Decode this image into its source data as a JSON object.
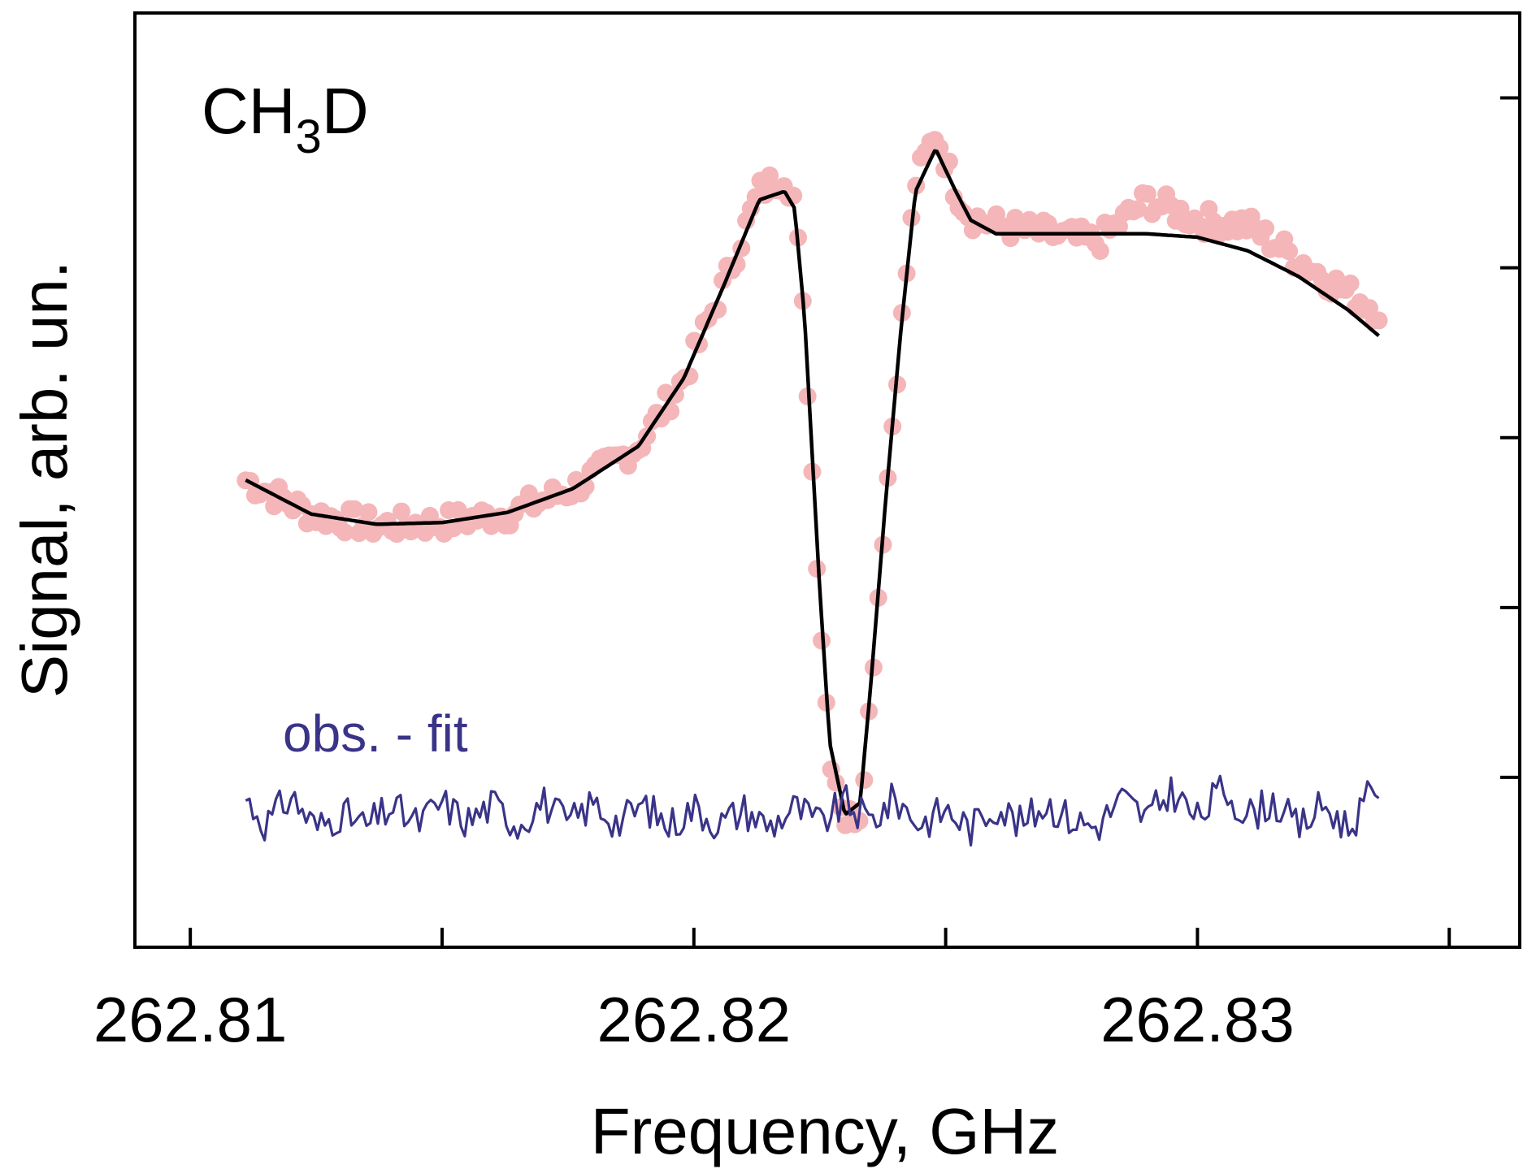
{
  "chart_data": {
    "type": "scatter",
    "title": "",
    "annotation_species": {
      "main": "CH",
      "sub": "3",
      "tail": "D"
    },
    "residual_label": "obs. - fit",
    "xlabel": "Frequency, GHz",
    "ylabel": "Signal, arb. un.",
    "xlim": [
      262.8089,
      262.8364
    ],
    "ylim": [
      -0.5,
      5.0
    ],
    "xticks": [
      262.81,
      262.815,
      262.82,
      262.825,
      262.83,
      262.835
    ],
    "xtick_labels": [
      "262.81",
      "",
      "262.82",
      "",
      "262.83",
      ""
    ],
    "yticks": [
      0.5,
      1.5,
      2.5,
      3.5,
      4.5
    ],
    "yticks_labeled": false,
    "grid": false,
    "colors": {
      "observed": "#f4b6b8",
      "fit": "#000000",
      "residual": "#3a3488"
    },
    "series": [
      {
        "name": "",
        "kind": "observed-points",
        "x": [
          262.8111,
          262.8124,
          262.8137,
          262.815,
          262.8163,
          262.8176,
          262.8189,
          262.8198,
          262.8206,
          262.8213,
          262.8218,
          262.822,
          262.8222,
          262.8225,
          262.8227,
          262.823,
          262.8233,
          262.8235,
          262.8238,
          262.8241,
          262.8244,
          262.8248,
          262.8252,
          262.8255,
          262.826,
          262.827,
          262.828,
          262.829,
          262.83,
          262.831,
          262.832,
          262.833,
          262.8336
        ],
        "y": [
          2.25,
          2.05,
          1.98,
          2.0,
          2.05,
          2.2,
          2.45,
          2.85,
          3.4,
          3.95,
          4.05,
          3.9,
          3.1,
          1.5,
          0.65,
          0.25,
          0.3,
          0.95,
          2.1,
          3.1,
          4.0,
          4.3,
          3.95,
          3.8,
          3.75,
          3.7,
          3.65,
          3.9,
          3.78,
          3.75,
          3.55,
          3.35,
          3.25
        ]
      },
      {
        "name": "",
        "kind": "fit-line",
        "x": [
          262.8111,
          262.8124,
          262.8137,
          262.815,
          262.8163,
          262.8176,
          262.8189,
          262.8198,
          262.8206,
          262.8213,
          262.8218,
          262.822,
          262.8222,
          262.8225,
          262.8227,
          262.823,
          262.8233,
          262.8235,
          262.8238,
          262.8241,
          262.8244,
          262.8248,
          262.8252,
          262.8255,
          262.826,
          262.827,
          262.828,
          262.829,
          262.83,
          262.831,
          262.832,
          262.833,
          262.8336
        ],
        "y": [
          2.25,
          2.05,
          1.99,
          2.0,
          2.06,
          2.2,
          2.45,
          2.85,
          3.4,
          3.9,
          3.95,
          3.85,
          3.2,
          1.6,
          0.7,
          0.28,
          0.35,
          1.0,
          2.1,
          3.1,
          3.95,
          4.2,
          3.95,
          3.78,
          3.7,
          3.7,
          3.7,
          3.7,
          3.68,
          3.6,
          3.45,
          3.25,
          3.1
        ]
      },
      {
        "name": "",
        "kind": "residual",
        "offset": 0.2,
        "x": [
          262.8111,
          262.8115,
          262.812,
          262.8125,
          262.813,
          262.8135,
          262.814,
          262.8145,
          262.815,
          262.8155,
          262.816,
          262.8165,
          262.817,
          262.8175,
          262.818,
          262.8185,
          262.819,
          262.8195,
          262.82,
          262.8205,
          262.821,
          262.8215,
          262.822,
          262.8225,
          262.823,
          262.8235,
          262.824,
          262.8245,
          262.825,
          262.8255,
          262.826,
          262.8265,
          262.827,
          262.8275,
          262.828,
          262.8285,
          262.829,
          262.8295,
          262.83,
          262.8305,
          262.831,
          262.8315,
          262.832,
          262.8325,
          262.833,
          262.8335,
          262.8336
        ],
        "y": [
          0.35,
          0.05,
          0.38,
          0.0,
          0.18,
          0.02,
          0.25,
          0.05,
          0.3,
          0.08,
          0.28,
          0.05,
          0.32,
          0.04,
          0.3,
          0.06,
          0.28,
          0.03,
          0.25,
          0.05,
          0.22,
          0.02,
          0.25,
          0.05,
          0.3,
          0.08,
          0.35,
          0.05,
          0.22,
          0.0,
          0.28,
          0.04,
          0.3,
          0.1,
          0.02,
          0.35,
          0.12,
          0.45,
          0.1,
          0.48,
          0.15,
          0.32,
          0.0,
          0.28,
          0.0,
          0.45,
          0.48
        ]
      }
    ]
  }
}
